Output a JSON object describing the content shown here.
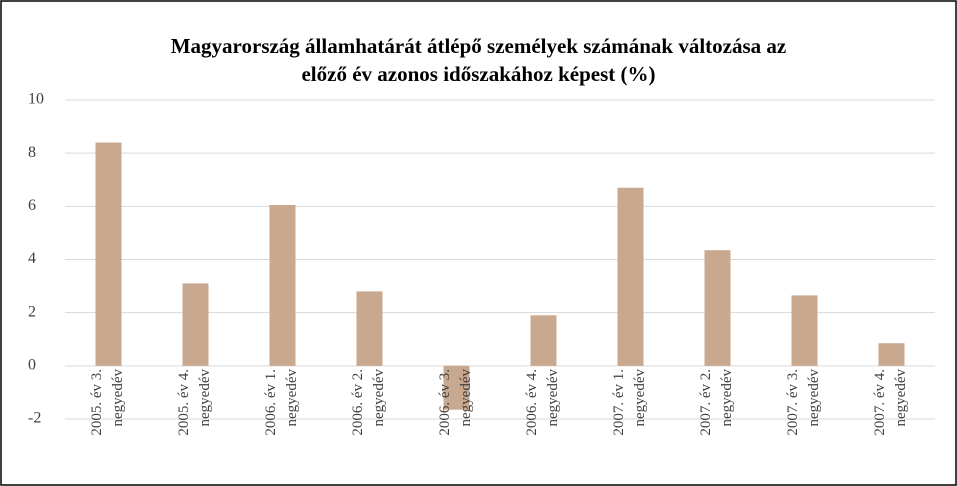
{
  "chart_data": {
    "type": "bar",
    "title": "Magyarország államhatárát átlépő személyek számának változása az előző év azonos időszakához képest (%)",
    "categories": [
      "2005. év 3. negyedév",
      "2005. év 4. negyedév",
      "2006. év 1. negyedév",
      "2006. év 2. negyedév",
      "2006. év 3. negyedév",
      "2006. év 4. negyedév",
      "2007. év 1. negyedév",
      "2007. év 2. negyedév",
      "2007. év 3. negyedév",
      "2007. év 4. negyedév"
    ],
    "values": [
      8.4,
      3.1,
      6.05,
      2.8,
      -1.65,
      1.9,
      6.7,
      4.35,
      2.65,
      0.85
    ],
    "color": "#c9a890",
    "ylim": [
      -2,
      10
    ],
    "yticks": [
      -2,
      0,
      2,
      4,
      6,
      8,
      10
    ],
    "grid": true
  }
}
